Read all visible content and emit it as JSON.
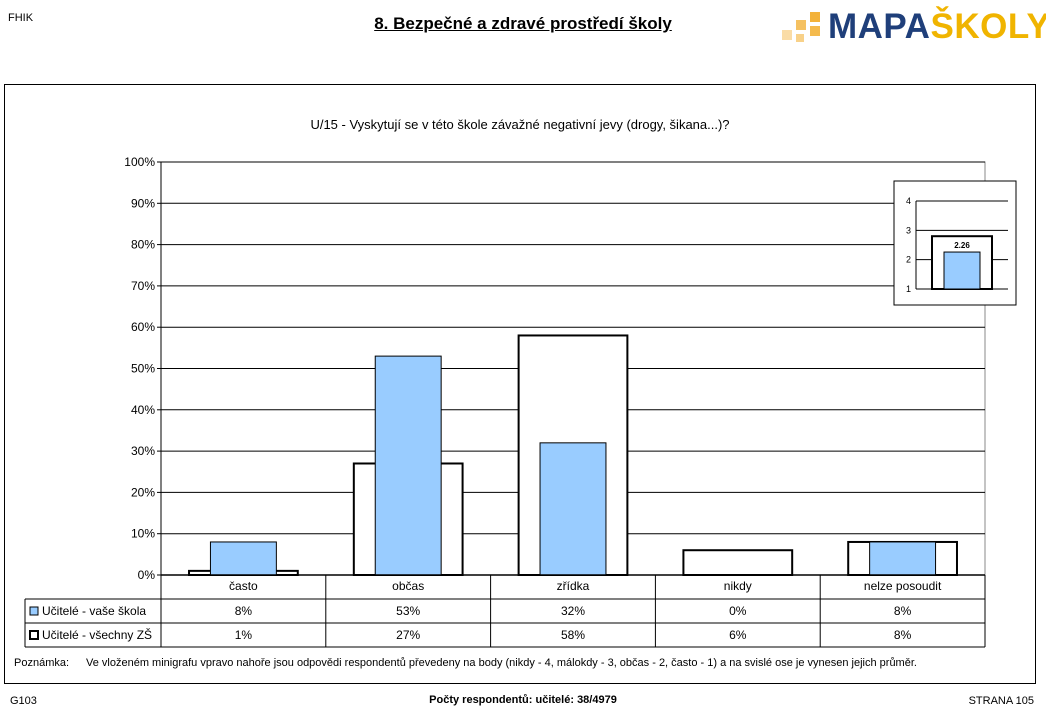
{
  "header": {
    "corner_code": "FHIK",
    "title": "8. Bezpečné a zdravé prostředí školy",
    "logo": {
      "text_left": "MAPA",
      "text_right": "ŠKOLY",
      "color_left": "#1f3f7a",
      "color_right": "#f0b400",
      "squares_color": "#f3b23a"
    }
  },
  "chart_data": {
    "type": "bar",
    "title": "U/15 - Vyskytují se v této škole závažné negativní jevy (drogy, šikana...)?",
    "categories": [
      "často",
      "občas",
      "zřídka",
      "nikdy",
      "nelze posoudit"
    ],
    "y_ticks": [
      "0%",
      "10%",
      "20%",
      "30%",
      "40%",
      "50%",
      "60%",
      "70%",
      "80%",
      "90%",
      "100%"
    ],
    "ylim": [
      0,
      100
    ],
    "grid": true,
    "series": [
      {
        "name": "Učitelé - vaše škola",
        "values": [
          8,
          53,
          32,
          0,
          8
        ],
        "labels": [
          "8%",
          "53%",
          "32%",
          "0%",
          "8%"
        ],
        "color": "#99ccff",
        "style": "filled"
      },
      {
        "name": "Učitelé - všechny ZŠ",
        "values": [
          1,
          27,
          58,
          6,
          8
        ],
        "labels": [
          "1%",
          "27%",
          "58%",
          "6%",
          "8%"
        ],
        "color": "#ffffff",
        "style": "outline"
      }
    ],
    "inset": {
      "type": "bar",
      "ylim": [
        1,
        4
      ],
      "y_ticks": [
        "1",
        "2",
        "3",
        "4"
      ],
      "school_value": 2.26,
      "school_label": "2.26",
      "all_value": 2.8
    }
  },
  "note": {
    "label": "Poznámka:",
    "text": "Ve vloženém minigrafu vpravo nahoře jsou odpovědi respondentů převedeny na body (nikdy - 4, málokdy - 3, občas - 2, často - 1) a na svislé ose je vynesen jejich průměr."
  },
  "footer": {
    "code": "G103",
    "respondents": "Počty respondentů:   učitelé: 38/4979",
    "page": "STRANA 105"
  }
}
